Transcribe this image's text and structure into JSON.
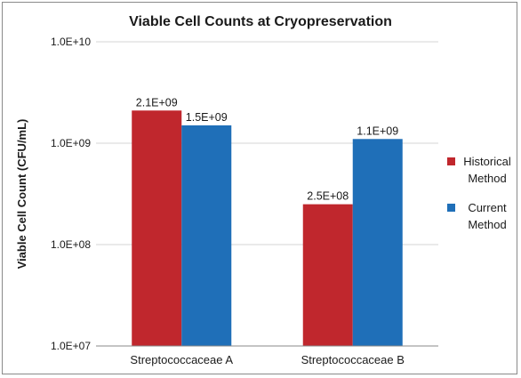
{
  "chart_data": {
    "type": "bar",
    "title": "Viable Cell Counts at Cryopreservation",
    "ylabel": "Viable Cell Count (CFU/mL)",
    "xlabel": "",
    "yscale": "log",
    "ylim": [
      10000000,
      10000000000
    ],
    "yticks": [
      10000000,
      100000000,
      1000000000,
      10000000000
    ],
    "ytick_labels": [
      "1.0E+07",
      "1.0E+08",
      "1.0E+09",
      "1.0E+10"
    ],
    "grid": true,
    "legend_position": "right",
    "categories": [
      "Streptococcaceae A",
      "Streptococcaceae B"
    ],
    "series": [
      {
        "name": "Historical Method",
        "legend_lines": [
          "Historical",
          "Method"
        ],
        "color": "#c0272d",
        "values": [
          2100000000,
          250000000
        ],
        "labels": [
          "2.1E+09",
          "2.5E+08"
        ]
      },
      {
        "name": "Current Method",
        "legend_lines": [
          "Current",
          "Method"
        ],
        "color": "#1f6fb8",
        "values": [
          1500000000,
          1100000000
        ],
        "labels": [
          "1.5E+09",
          "1.1E+09"
        ]
      }
    ]
  }
}
